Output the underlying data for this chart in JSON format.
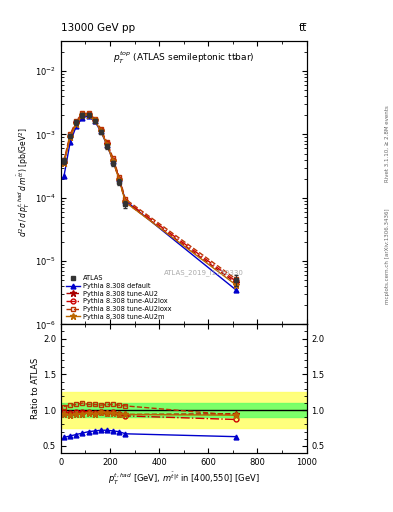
{
  "title_left": "13000 GeV pp",
  "title_right": "tt̅",
  "inner_title": "$p_T^{top}$ (ATLAS semileptonic tt̅bar)",
  "watermark": "ATLAS_2019_I1750330",
  "right_label_top": "Rivet 3.1.10, ≥ 2.8M events",
  "right_label_bot": "mcplots.cern.ch [arXiv:1306.3436]",
  "xdata": [
    12.5,
    37.5,
    62.5,
    87.5,
    112.5,
    137.5,
    162.5,
    187.5,
    212.5,
    237.5,
    262.5,
    712.5
  ],
  "atlas_y": [
    0.00038,
    0.00095,
    0.00155,
    0.002,
    0.00205,
    0.00165,
    0.0011,
    0.00065,
    0.00035,
    0.00018,
    8e-05,
    5e-06
  ],
  "atlas_yerr": [
    4e-05,
    8e-05,
    0.00012,
    0.00015,
    0.00015,
    0.00012,
    9e-05,
    6e-05,
    3e-05,
    2e-05,
    1e-05,
    1e-06
  ],
  "default_y": [
    0.00022,
    0.00075,
    0.00135,
    0.00185,
    0.00195,
    0.00162,
    0.00112,
    0.00068,
    0.00038,
    0.0002,
    9e-05,
    3.5e-06
  ],
  "au2_y": [
    0.00036,
    0.00092,
    0.0015,
    0.002,
    0.00205,
    0.0017,
    0.00115,
    0.0007,
    0.00038,
    0.00019,
    8.5e-05,
    4.5e-06
  ],
  "au2lox_y": [
    0.00037,
    0.00094,
    0.00155,
    0.00205,
    0.0021,
    0.00172,
    0.00118,
    0.00072,
    0.0004,
    0.0002,
    9e-05,
    4.8e-06
  ],
  "au2loxx_y": [
    0.00039,
    0.001,
    0.00165,
    0.00215,
    0.00215,
    0.00178,
    0.00122,
    0.00075,
    0.00042,
    0.00021,
    9.5e-05,
    5.2e-06
  ],
  "au2m_y": [
    0.00035,
    0.0009,
    0.00148,
    0.002,
    0.00205,
    0.00168,
    0.00114,
    0.00069,
    0.00038,
    0.00019,
    8.5e-05,
    4.2e-06
  ],
  "ratio_default": [
    0.62,
    0.64,
    0.66,
    0.68,
    0.7,
    0.71,
    0.72,
    0.72,
    0.71,
    0.7,
    0.67,
    0.63
  ],
  "ratio_au2": [
    0.95,
    0.93,
    0.94,
    0.95,
    0.96,
    0.95,
    0.97,
    0.96,
    0.96,
    0.95,
    0.94,
    0.95
  ],
  "ratio_au2lox": [
    0.97,
    0.96,
    0.97,
    0.98,
    0.98,
    0.96,
    0.97,
    0.96,
    0.97,
    0.95,
    0.92,
    0.87
  ],
  "ratio_au2loxx": [
    1.05,
    1.07,
    1.08,
    1.1,
    1.08,
    1.08,
    1.07,
    1.08,
    1.08,
    1.07,
    1.06,
    0.93
  ],
  "ratio_au2m": [
    0.95,
    0.93,
    0.94,
    0.95,
    0.96,
    0.95,
    0.97,
    0.96,
    0.96,
    0.95,
    0.94,
    0.93
  ],
  "band_green_lo": 0.9,
  "band_green_hi": 1.1,
  "band_yellow_lo": 0.75,
  "band_yellow_hi": 1.25,
  "color_atlas": "#333333",
  "color_default": "#0000cc",
  "color_au2": "#aa0000",
  "color_au2lox": "#cc0000",
  "color_au2loxx": "#bb3300",
  "color_au2m": "#bb6600",
  "ylim_main": [
    1e-06,
    0.03
  ],
  "ylim_ratio": [
    0.4,
    2.2
  ],
  "xlim": [
    0,
    1000
  ]
}
